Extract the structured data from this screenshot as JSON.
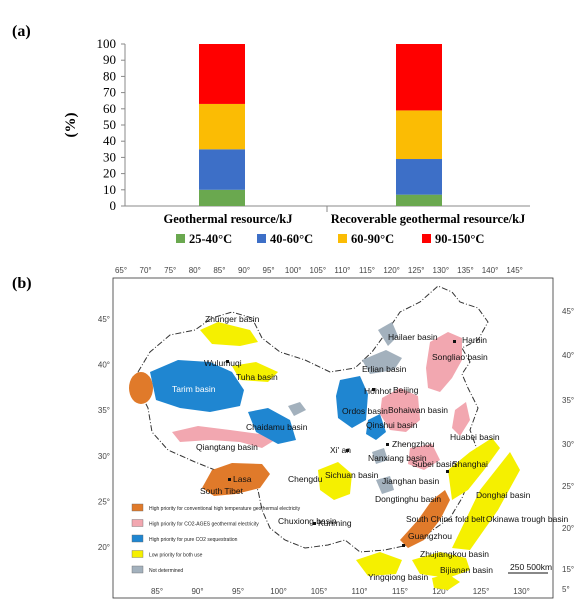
{
  "panel_a": {
    "label": "(a)"
  },
  "panel_b": {
    "label": "(b)",
    "top_longitudes": [
      "65°",
      "70°",
      "75°",
      "80°",
      "85°",
      "90°",
      "95°",
      "100°",
      "105°",
      "110°",
      "115°",
      "120°",
      "125°",
      "130°",
      "135°",
      "140°",
      "145°"
    ],
    "bottom_longitudes": [
      "85°",
      "90°",
      "95°",
      "100°",
      "105°",
      "110°",
      "115°",
      "120°",
      "125°",
      "130°"
    ],
    "left_latitudes": [
      "45°",
      "40°",
      "35°",
      "30°",
      "25°",
      "20°"
    ],
    "right_latitudes": [
      "45°",
      "40°",
      "35°",
      "30°",
      "25°",
      "20°",
      "15°",
      "5°"
    ],
    "basins": [
      "Zhunger basin",
      "Wulumuqi",
      "Tuha basin",
      "Tarim basin",
      "Chaidamu basin",
      "Qiangtang basin",
      "Lasa",
      "South Tibet",
      "Chengdu",
      "Sichuan basin",
      "Ordos basin",
      "Hohhot",
      "Beijing",
      "Erlian basin",
      "Hailaer basin",
      "Songliao basin",
      "Harbin",
      "Bohaiwan basin",
      "Qinshui basin",
      "Huabei basin",
      "Xi' an",
      "Zhengzhou",
      "Nanxiang basin",
      "Subei basin",
      "Shanghai",
      "Jianghan basin",
      "Dongtinghu basin",
      "Donghai basin",
      "Okinawa trough basin",
      "South China fold belt",
      "Guangzhou",
      "Zhujiangkou basin",
      "Chuxiong basin",
      "Kunming",
      "Yingqiong basin",
      "Bijianan basin"
    ],
    "scale_label": "250 500km",
    "legend": [
      {
        "label": "High priority for conventional high temperature geothermal electricity",
        "color": "#e07a2a"
      },
      {
        "label": "High priority for CO2-AGES geothermal electricity",
        "color": "#f2a7b0"
      },
      {
        "label": "High priority for pure CO2 sequestration",
        "color": "#1f86d1"
      },
      {
        "label": "Low priority for both use",
        "color": "#f5f000"
      },
      {
        "label": "Not determined",
        "color": "#a3b1bd"
      }
    ]
  },
  "chart_data": {
    "type": "bar",
    "stacked": true,
    "ylabel": "(%)",
    "ylim": [
      0,
      100
    ],
    "yticks": [
      "0",
      "10",
      "20",
      "30",
      "40",
      "50",
      "60",
      "70",
      "80",
      "90",
      "100"
    ],
    "categories": [
      "Geothermal resource/kJ",
      "Recoverable geothermal resource/kJ"
    ],
    "series": [
      {
        "name": "25-40°C",
        "color": "#6aa84f",
        "values": [
          10,
          7
        ]
      },
      {
        "name": "40-60°C",
        "color": "#3d6fc7",
        "values": [
          25,
          22
        ]
      },
      {
        "name": "60-90°C",
        "color": "#fbbc04",
        "values": [
          28,
          30
        ]
      },
      {
        "name": "90-150°C",
        "color": "#ff0000",
        "values": [
          37,
          41
        ]
      }
    ],
    "grid": false,
    "legend_position": "bottom"
  }
}
